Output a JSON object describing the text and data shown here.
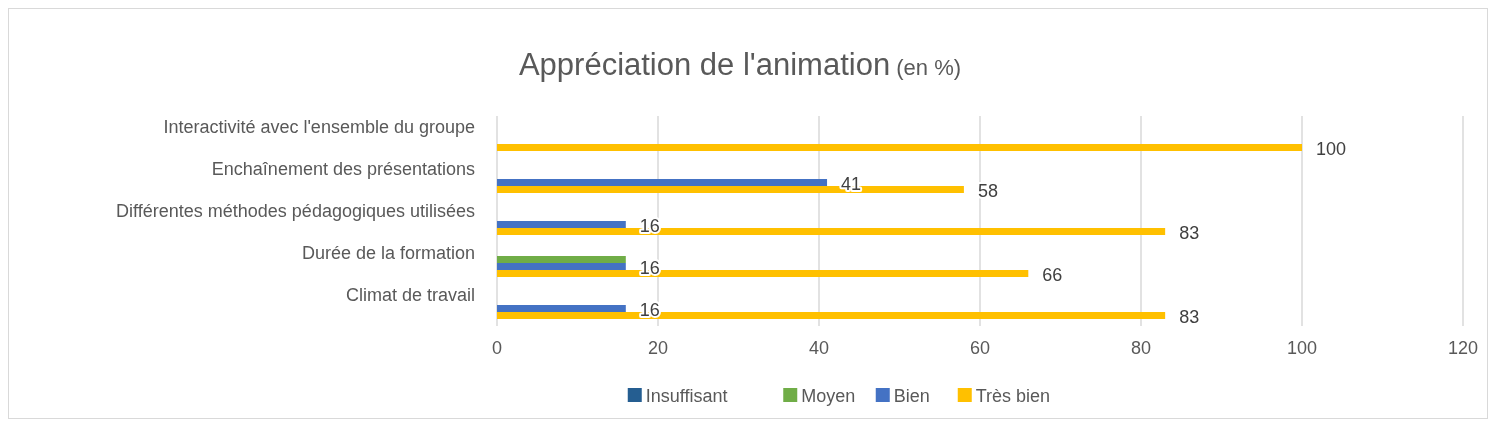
{
  "chart_data": {
    "type": "bar",
    "orientation": "horizontal",
    "title": "Appréciation de l'animation (en %)",
    "categories": [
      "Interactivité avec l'ensemble du groupe",
      "Enchaînement des présentations",
      "Différentes méthodes pédagogiques utilisées",
      "Durée de la formation",
      "Climat de travail"
    ],
    "series": [
      {
        "name": "Insuffisant",
        "color": "#255e91",
        "values": [
          null,
          null,
          null,
          null,
          null
        ],
        "value_labels": [
          null,
          null,
          null,
          null,
          null
        ]
      },
      {
        "name": "Moyen",
        "color": "#70ad47",
        "values": [
          null,
          null,
          null,
          16,
          null
        ],
        "value_labels": [
          null,
          null,
          null,
          null,
          null
        ]
      },
      {
        "name": "Bien",
        "color": "#4472c4",
        "values": [
          null,
          41,
          16,
          16,
          16
        ],
        "value_labels": [
          null,
          "41",
          "16",
          "16",
          "16"
        ]
      },
      {
        "name": "Très bien",
        "color": "#ffc000",
        "values": [
          100,
          58,
          83,
          66,
          83
        ],
        "value_labels": [
          "100",
          "58",
          "83",
          "66",
          "83"
        ]
      }
    ],
    "xlim": [
      0,
      120
    ],
    "xticks": [
      0,
      20,
      40,
      60,
      80,
      100,
      120
    ],
    "grid": "x",
    "legend": "bottom"
  }
}
